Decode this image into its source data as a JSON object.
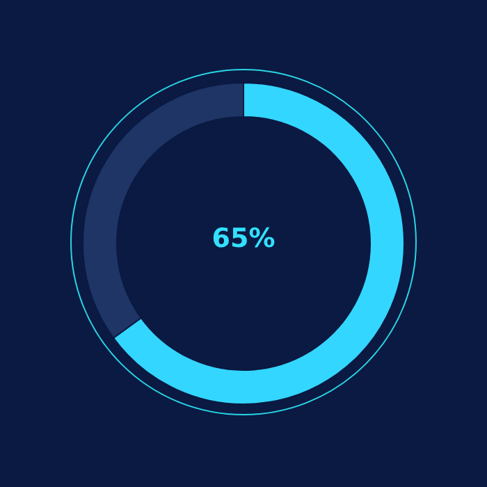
{
  "chart_data": {
    "type": "donut",
    "categories": [
      null,
      null
    ],
    "values": [
      65,
      35
    ],
    "colors": [
      "#33d6ff",
      "#1e3566"
    ],
    "annotations": [
      "65%"
    ]
  }
}
